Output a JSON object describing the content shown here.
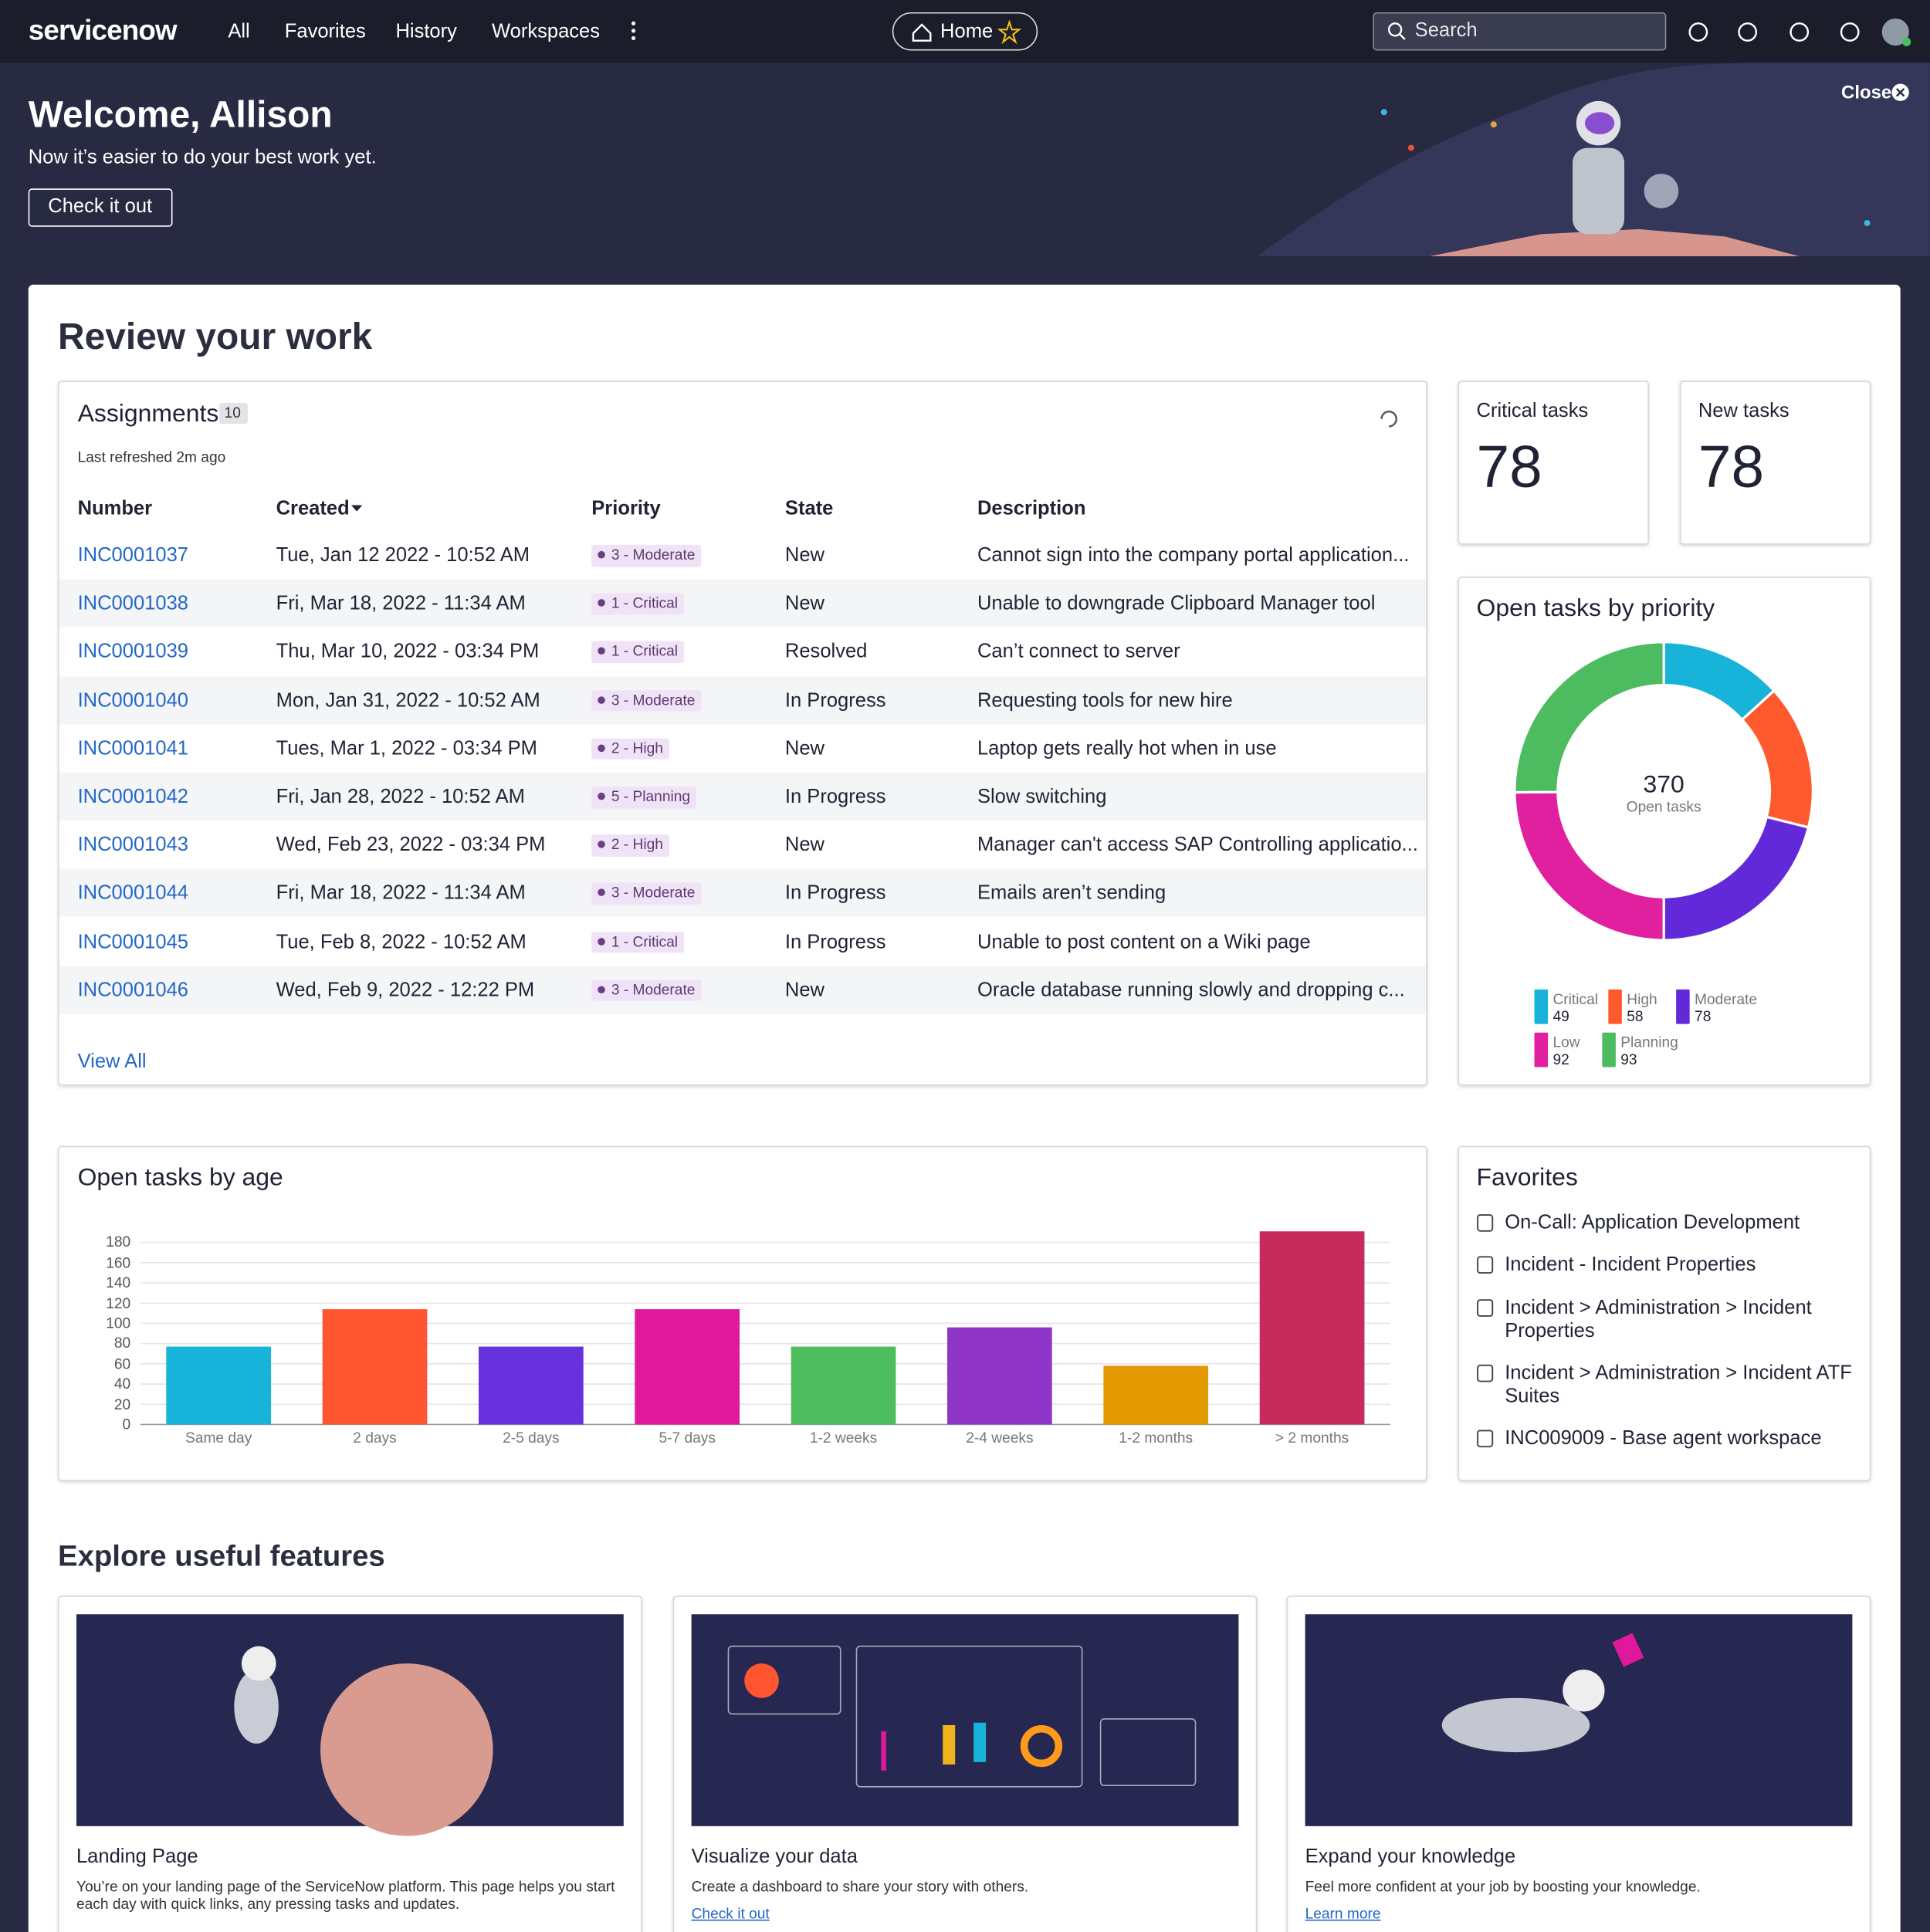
{
  "nav": {
    "logo": "servicenow",
    "links": [
      "All",
      "Favorites",
      "History",
      "Workspaces"
    ],
    "home": "Home",
    "search": "Search"
  },
  "banner": {
    "title": "Welcome, Allison",
    "subtitle": "Now it’s easier to do your best work yet.",
    "button": "Check it out",
    "close": "Close"
  },
  "page_title": "Review your work",
  "assignments": {
    "title": "Assignments",
    "count": 10,
    "refreshed": "Last refreshed 2m ago",
    "columns": [
      "Number",
      "Created",
      "Priority",
      "State",
      "Description"
    ],
    "rows": [
      [
        "INC0001037",
        "Tue, Jan 12 2022 - 10:52 AM",
        "3 - Moderate",
        "New",
        "Cannot sign into the company portal application..."
      ],
      [
        "INC0001038",
        "Fri, Mar 18, 2022 - 11:34 AM",
        "1 - Critical",
        "New",
        "Unable to downgrade Clipboard Manager tool"
      ],
      [
        "INC0001039",
        "Thu, Mar 10, 2022 - 03:34 PM",
        "1 - Critical",
        "Resolved",
        "Can’t connect to server"
      ],
      [
        "INC0001040",
        "Mon, Jan 31, 2022 - 10:52 AM",
        "3 - Moderate",
        "In Progress",
        "Requesting tools for new hire"
      ],
      [
        "INC0001041",
        "Tues, Mar 1, 2022 - 03:34 PM",
        "2 - High",
        "New",
        "Laptop gets really hot when in use"
      ],
      [
        "INC0001042",
        "Fri, Jan 28, 2022 - 10:52 AM",
        "5 - Planning",
        "In Progress",
        "Slow switching"
      ],
      [
        "INC0001043",
        "Wed, Feb 23, 2022 - 03:34 PM",
        "2 - High",
        "New",
        "Manager can't access SAP Controlling applicatio..."
      ],
      [
        "INC0001044",
        "Fri, Mar 18, 2022 - 11:34 AM",
        "3 - Moderate",
        "In Progress",
        "Emails aren’t sending"
      ],
      [
        "INC0001045",
        "Tue, Feb 8, 2022 - 10:52 AM",
        "1 - Critical",
        "In Progress",
        "Unable to post content on a Wiki page"
      ],
      [
        "INC0001046",
        "Wed, Feb 9, 2022 - 12:22 PM",
        "3 - Moderate",
        "New",
        "Oracle database running slowly and dropping c..."
      ]
    ],
    "view_all": "View All"
  },
  "stats": [
    {
      "label": "Critical tasks",
      "value": 78
    },
    {
      "label": "New tasks",
      "value": 78
    }
  ],
  "chart_data": [
    {
      "type": "donut",
      "title": "Open tasks by priority",
      "categories": [
        "Critical",
        "High",
        "Moderate",
        "Low",
        "Planning"
      ],
      "values": [
        49,
        58,
        78,
        92,
        93
      ],
      "colors": [
        "#17b3d8",
        "#ff5a2e",
        "#6229d8",
        "#e0209e",
        "#4dbb5f"
      ],
      "center_value": 370,
      "center_label": "Open tasks"
    },
    {
      "type": "bar",
      "title": "Open tasks by age",
      "categories": [
        "Same day",
        "2 days",
        "2-5 days",
        "5-7 days",
        "1-2 weeks",
        "2-4 weeks",
        "1-2 months",
        "> 2 months"
      ],
      "values": [
        77,
        114,
        77,
        114,
        77,
        96,
        58,
        191
      ],
      "colors": [
        "#16b4d9",
        "#ff5530",
        "#6630dc",
        "#e0199c",
        "#4dbd60",
        "#8f36c9",
        "#e39a00",
        "#c72a5c"
      ],
      "ylim": [
        0,
        195
      ],
      "yticks": [
        0,
        20,
        40,
        60,
        80,
        100,
        120,
        140,
        160,
        180
      ],
      "grid": true
    }
  ],
  "favorites": {
    "title": "Favorites",
    "items": [
      "On-Call: Application Development",
      "Incident - Incident Properties",
      "Incident > Administration > Incident Properties",
      "Incident > Administration > Incident ATF Suites",
      "INC009009 - Base agent workspace"
    ]
  },
  "features": {
    "title": "Explore useful features",
    "cards": [
      {
        "title": "Landing Page",
        "text": "You’re on your landing page of the ServiceNow platform. This page helps you start each day with quick links, any pressing tasks and updates."
      },
      {
        "title": "Visualize your data",
        "text": "Create a dashboard to share your story with others.",
        "link": "Check it out"
      },
      {
        "title": "Expand your knowledge",
        "text": "Feel more confident at your job by boosting your knowledge.",
        "link": "Learn more"
      }
    ]
  }
}
